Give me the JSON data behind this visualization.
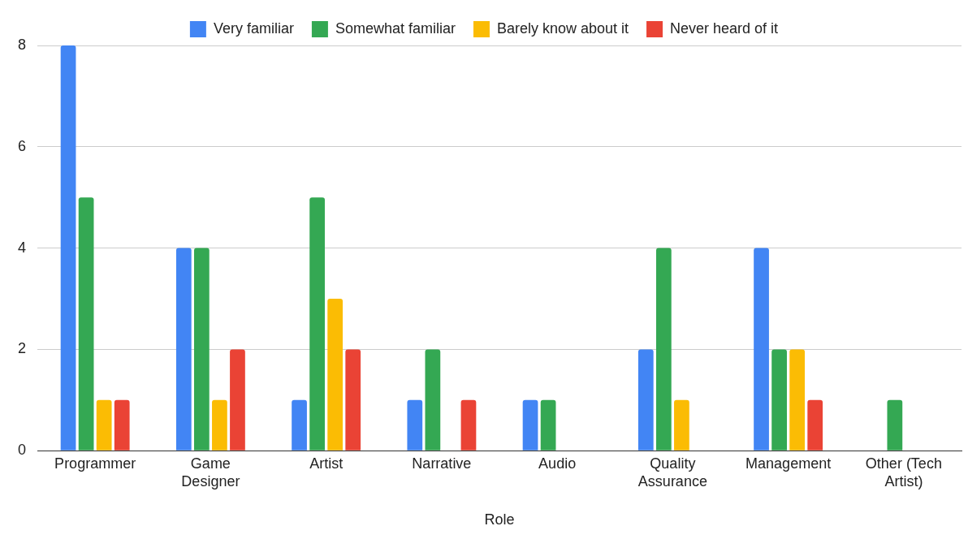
{
  "chart_data": {
    "type": "bar",
    "xlabel": "Role",
    "categories": [
      "Programmer",
      "Game Designer",
      "Artist",
      "Narrative",
      "Audio",
      "Quality Assurance",
      "Management",
      "Other (Tech Artist)"
    ],
    "series": [
      {
        "name": "Very familiar",
        "color": "#4285f4",
        "values": [
          8,
          4,
          1,
          1,
          1,
          2,
          4,
          0
        ]
      },
      {
        "name": "Somewhat familiar",
        "color": "#34a853",
        "values": [
          5,
          4,
          5,
          2,
          1,
          4,
          2,
          1
        ]
      },
      {
        "name": "Barely know about it",
        "color": "#fbbc04",
        "values": [
          1,
          1,
          3,
          0,
          0,
          1,
          2,
          0
        ]
      },
      {
        "name": "Never heard of it",
        "color": "#ea4335",
        "values": [
          1,
          2,
          2,
          1,
          0,
          0,
          1,
          0
        ]
      }
    ],
    "ylim": [
      0,
      8
    ],
    "yticks": [
      0,
      2,
      4,
      6,
      8
    ],
    "grid": "y",
    "legend": "top"
  }
}
